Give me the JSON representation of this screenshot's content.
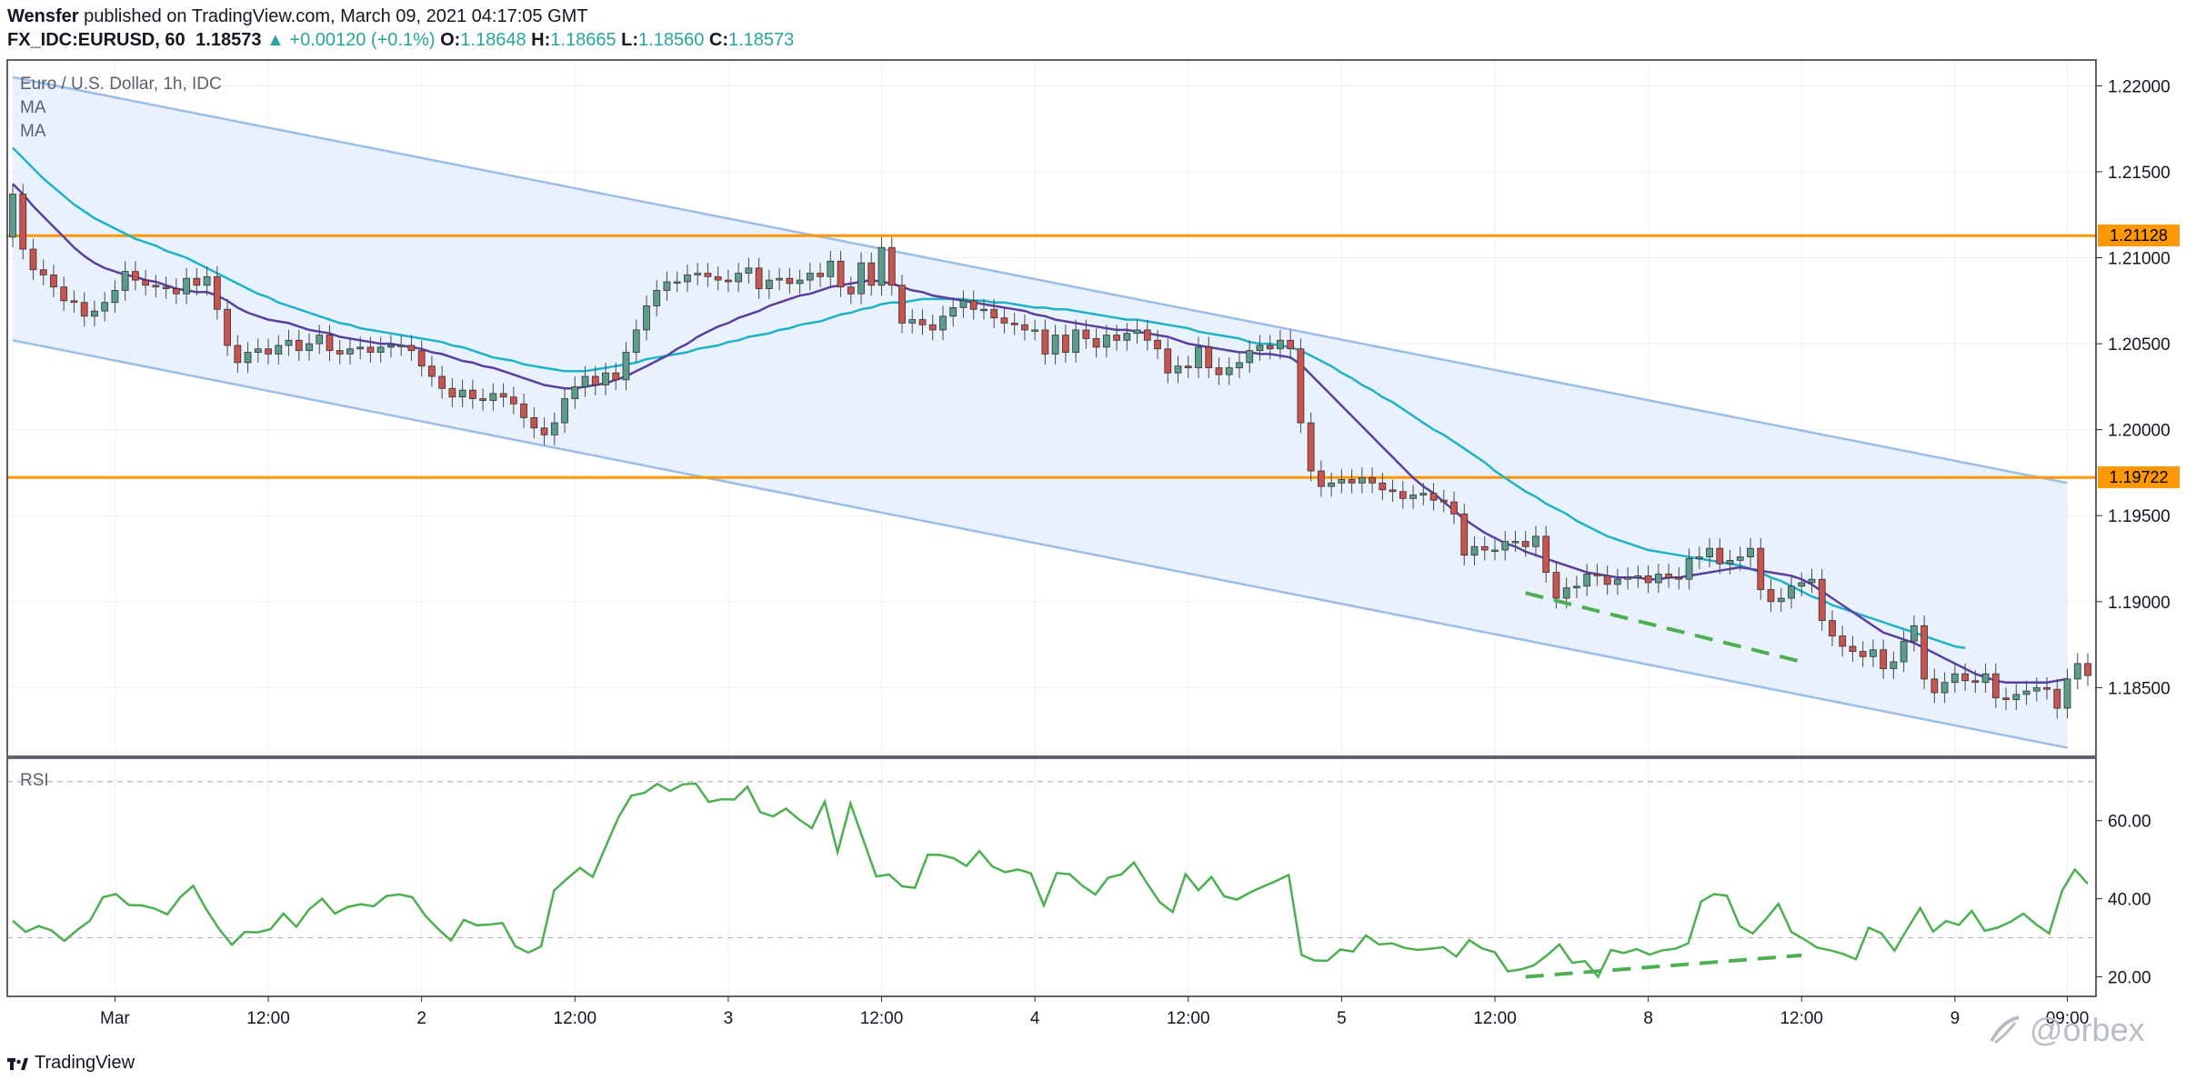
{
  "header": {
    "author": "Wensfer",
    "published_text": " published on TradingView.com, March 09, 2021 04:17:05 GMT",
    "symbol": "FX_IDC:EURUSD, 60",
    "last": "1.18573",
    "arrow": "▲",
    "change": "+0.00120 (+0.1%)",
    "o_label": "O:",
    "o": "1.18648",
    "h_label": "H:",
    "h": "1.18665",
    "l_label": "L:",
    "l": "1.18560",
    "c_label": "C:",
    "c": "1.18573"
  },
  "legend": {
    "instrument": "Euro / U.S. Dollar, 1h, IDC",
    "ma1": "MA",
    "ma2": "MA",
    "rsi": "RSI"
  },
  "footer": {
    "brand": "TradingView",
    "watermark": "@orbex"
  },
  "colors": {
    "up": "#5b9c8a",
    "down": "#c9534f",
    "ma_fast": "#5b3fa0",
    "ma_slow": "#1cb3c8",
    "rsi": "#4caf50",
    "level": "#ff9800",
    "channel": "#9bbde6",
    "channel_fill": "#e9f1fc"
  },
  "chart_data": [
    {
      "type": "candlestick",
      "title": "Euro / U.S. Dollar, 1h, IDC",
      "ylim": [
        1.181,
        1.2215
      ],
      "y_ticks": [
        1.185,
        1.19,
        1.195,
        1.2,
        1.205,
        1.21,
        1.215,
        1.22
      ],
      "y_tick_labels": [
        "1.18500",
        "1.19000",
        "1.19500",
        "1.20000",
        "1.20500",
        "1.21000",
        "1.21500",
        "1.22000"
      ],
      "x_tick_labels": [
        "Mar",
        "12:00",
        "2",
        "12:00",
        "3",
        "12:00",
        "4",
        "12:00",
        "5",
        "12:00",
        "8",
        "12:00",
        "9",
        "09:00"
      ],
      "x_tick_index": [
        10,
        25,
        40,
        55,
        70,
        85,
        100,
        115,
        130,
        145,
        160,
        175,
        190,
        201
      ],
      "levels": [
        {
          "label": "1.21128",
          "value": 1.21128
        },
        {
          "label": "1.19722",
          "value": 1.19722
        }
      ],
      "channel": {
        "upper": [
          [
            0,
            1.2205
          ],
          [
            201,
            1.1969
          ]
        ],
        "lower": [
          [
            0,
            1.2052
          ],
          [
            201,
            1.1815
          ]
        ]
      },
      "close": [
        1.2137,
        1.2105,
        1.2093,
        1.209,
        1.2083,
        1.2075,
        1.2074,
        1.2066,
        1.2069,
        1.2074,
        1.2081,
        1.2092,
        1.2087,
        1.2084,
        1.2083,
        1.2082,
        1.2079,
        1.2088,
        1.2084,
        1.2089,
        1.207,
        1.2049,
        1.2039,
        1.2045,
        1.2047,
        1.2044,
        1.2049,
        1.2052,
        1.2046,
        1.205,
        1.2055,
        1.2046,
        1.2044,
        1.2047,
        1.2048,
        1.2045,
        1.2048,
        1.2049,
        1.2049,
        1.2046,
        1.2037,
        1.2031,
        1.2024,
        1.2019,
        1.2023,
        1.2018,
        1.2017,
        1.2021,
        1.2019,
        1.2015,
        1.2007,
        1.2001,
        1.1997,
        1.2004,
        1.2018,
        1.2025,
        1.2031,
        1.2026,
        1.2033,
        1.2029,
        1.2045,
        1.2058,
        1.2072,
        1.2081,
        1.2086,
        1.2086,
        1.209,
        1.2091,
        1.2089,
        1.2087,
        1.2086,
        1.2091,
        1.2094,
        1.2082,
        1.2087,
        1.2088,
        1.2085,
        1.2087,
        1.2091,
        1.2089,
        1.2098,
        1.2083,
        1.2079,
        1.2097,
        1.2084,
        1.2106,
        1.2084,
        1.2062,
        1.2064,
        1.2061,
        1.2058,
        1.2066,
        1.2071,
        1.2075,
        1.207,
        1.207,
        1.2065,
        1.2062,
        1.2061,
        1.2058,
        1.2058,
        1.2044,
        1.2055,
        1.2045,
        1.2058,
        1.2053,
        1.2048,
        1.2055,
        1.2052,
        1.2056,
        1.2058,
        1.2052,
        1.2047,
        1.2033,
        1.2037,
        1.2036,
        1.2048,
        1.2036,
        1.2032,
        1.2036,
        1.2039,
        1.2046,
        1.2049,
        1.2047,
        1.2052,
        1.2047,
        1.2004,
        1.1976,
        1.1967,
        1.1969,
        1.1971,
        1.1969,
        1.1972,
        1.1969,
        1.1965,
        1.1964,
        1.196,
        1.1962,
        1.1963,
        1.1959,
        1.1958,
        1.1951,
        1.1927,
        1.1932,
        1.193,
        1.193,
        1.1935,
        1.1935,
        1.1932,
        1.1938,
        1.1917,
        1.1902,
        1.1908,
        1.1909,
        1.1916,
        1.1915,
        1.191,
        1.1913,
        1.1914,
        1.1915,
        1.1911,
        1.1916,
        1.1914,
        1.1913,
        1.1925,
        1.1926,
        1.1931,
        1.1922,
        1.1924,
        1.1926,
        1.1931,
        1.1907,
        1.19,
        1.1902,
        1.1909,
        1.1911,
        1.1913,
        1.1889,
        1.188,
        1.1874,
        1.1871,
        1.1868,
        1.1872,
        1.1861,
        1.1865,
        1.1877,
        1.1886,
        1.1855,
        1.1847,
        1.1853,
        1.1858,
        1.1854,
        1.1853,
        1.1858,
        1.1844,
        1.1843,
        1.1846,
        1.1848,
        1.185,
        1.1849,
        1.1838,
        1.1855,
        1.1864,
        1.1857
      ],
      "ma_fast": [
        1.2143,
        1.2137,
        1.213,
        1.2124,
        1.2118,
        1.2112,
        1.2106,
        1.2101,
        1.2097,
        1.2094,
        1.2092,
        1.209,
        1.2089,
        1.2087,
        1.2086,
        1.2084,
        1.2082,
        1.2081,
        1.208,
        1.208,
        1.2078,
        1.2075,
        1.2071,
        1.2068,
        1.2066,
        1.2064,
        1.2063,
        1.2062,
        1.206,
        1.2058,
        1.2057,
        1.2056,
        1.2054,
        1.2053,
        1.2052,
        1.2051,
        1.205,
        1.205,
        1.2049,
        1.2048,
        1.2047,
        1.2045,
        1.2044,
        1.2042,
        1.204,
        1.2039,
        1.2037,
        1.2036,
        1.2034,
        1.2032,
        1.203,
        1.2028,
        1.2026,
        1.2025,
        1.2024,
        1.2024,
        1.2025,
        1.2026,
        1.2027,
        1.2029,
        1.2031,
        1.2034,
        1.2037,
        1.204,
        1.2043,
        1.2047,
        1.205,
        1.2054,
        1.2057,
        1.206,
        1.2062,
        1.2065,
        1.2067,
        1.2069,
        1.2072,
        1.2074,
        1.2076,
        1.2078,
        1.2079,
        1.2081,
        1.2083,
        1.2084,
        1.2085,
        1.2086,
        1.2087,
        1.2086,
        1.2085,
        1.2083,
        1.2081,
        1.208,
        1.2078,
        1.2077,
        1.2076,
        1.2075,
        1.2074,
        1.2073,
        1.2072,
        1.2071,
        1.207,
        1.2069,
        1.2067,
        1.2066,
        1.2064,
        1.2063,
        1.2062,
        1.2061,
        1.206,
        1.2059,
        1.2058,
        1.2058,
        1.2057,
        1.2056,
        1.2055,
        1.2054,
        1.2052,
        1.205,
        1.2049,
        1.2048,
        1.2047,
        1.2046,
        1.2045,
        1.2045,
        1.2044,
        1.2044,
        1.2043,
        1.2042,
        1.2038,
        1.2032,
        1.2026,
        1.202,
        1.2014,
        1.2008,
        1.2002,
        1.1996,
        1.199,
        1.1984,
        1.1978,
        1.1972,
        1.1967,
        1.1963,
        1.1958,
        1.1953,
        1.1948,
        1.1944,
        1.194,
        1.1937,
        1.1934,
        1.1932,
        1.1929,
        1.1927,
        1.1925,
        1.1923,
        1.1921,
        1.1919,
        1.1917,
        1.1916,
        1.1915,
        1.1914,
        1.1914,
        1.1914,
        1.1913,
        1.1913,
        1.1914,
        1.1914,
        1.1915,
        1.1916,
        1.1917,
        1.1918,
        1.1919,
        1.192,
        1.1919,
        1.1918,
        1.1917,
        1.1916,
        1.1915,
        1.1913,
        1.191,
        1.1906,
        1.1902,
        1.1898,
        1.1894,
        1.189,
        1.1886,
        1.1882,
        1.188,
        1.1878,
        1.1876,
        1.1873,
        1.187,
        1.1867,
        1.1864,
        1.1861,
        1.1858,
        1.1856,
        1.1854,
        1.1853,
        1.1853,
        1.1853,
        1.1853,
        1.1853,
        1.1854,
        1.1855
      ],
      "ma_slow": [
        1.2164,
        1.2158,
        1.2152,
        1.2146,
        1.2141,
        1.2136,
        1.2131,
        1.2127,
        1.2123,
        1.212,
        1.2117,
        1.2114,
        1.2111,
        1.2109,
        1.2107,
        1.2104,
        1.2102,
        1.21,
        1.2097,
        1.2094,
        1.2091,
        1.2088,
        1.2085,
        1.2082,
        1.2079,
        1.2077,
        1.2074,
        1.2072,
        1.207,
        1.2068,
        1.2066,
        1.2064,
        1.2062,
        1.2061,
        1.2059,
        1.2058,
        1.2057,
        1.2056,
        1.2055,
        1.2054,
        1.2053,
        1.2052,
        1.2051,
        1.2049,
        1.2048,
        1.2046,
        1.2044,
        1.2042,
        1.2041,
        1.204,
        1.2038,
        1.2037,
        1.2036,
        1.2035,
        1.2034,
        1.2034,
        1.2034,
        1.2035,
        1.2036,
        1.2037,
        1.2038,
        1.2039,
        1.2041,
        1.2042,
        1.2043,
        1.2044,
        1.2045,
        1.2047,
        1.2048,
        1.2049,
        1.2051,
        1.2052,
        1.2054,
        1.2055,
        1.2056,
        1.2058,
        1.2059,
        1.2061,
        1.2062,
        1.2063,
        1.2065,
        1.2067,
        1.2068,
        1.207,
        1.2071,
        1.2073,
        1.2074,
        1.2074,
        1.2075,
        1.2076,
        1.2076,
        1.2076,
        1.2076,
        1.2076,
        1.2075,
        1.2075,
        1.2074,
        1.2074,
        1.2073,
        1.2072,
        1.2071,
        1.2071,
        1.207,
        1.207,
        1.2069,
        1.2068,
        1.2067,
        1.2066,
        1.2065,
        1.2064,
        1.2064,
        1.2063,
        1.2062,
        1.2061,
        1.206,
        1.2059,
        1.2057,
        1.2056,
        1.2055,
        1.2054,
        1.2053,
        1.2051,
        1.205,
        1.205,
        1.2049,
        1.2048,
        1.2046,
        1.2043,
        1.204,
        1.2037,
        1.2033,
        1.203,
        1.2026,
        1.2023,
        1.2019,
        1.2016,
        1.2012,
        1.2008,
        1.2004,
        1.2,
        1.1997,
        1.1993,
        1.1989,
        1.1985,
        1.1981,
        1.1976,
        1.1972,
        1.1968,
        1.1964,
        1.1961,
        1.1957,
        1.1954,
        1.1951,
        1.1947,
        1.1944,
        1.1941,
        1.1938,
        1.1936,
        1.1934,
        1.1932,
        1.193,
        1.1929,
        1.1928,
        1.1927,
        1.1926,
        1.1925,
        1.1924,
        1.1923,
        1.1922,
        1.1921,
        1.1919,
        1.1917,
        1.1914,
        1.1912,
        1.1909,
        1.1906,
        1.1903,
        1.1901,
        1.1898,
        1.1896,
        1.1894,
        1.1892,
        1.189,
        1.1888,
        1.1886,
        1.1884,
        1.1882,
        1.188,
        1.1878,
        1.1876,
        1.1874,
        1.1873
      ],
      "annotation": {
        "style": "dashed",
        "color": "#4caf50",
        "from": [
          148,
          1.1905
        ],
        "to": [
          175,
          1.1865
        ]
      }
    },
    {
      "type": "line",
      "title": "RSI",
      "ylim": [
        15,
        76
      ],
      "y_ticks": [
        20,
        40,
        60
      ],
      "y_tick_labels": [
        "20.00",
        "40.00",
        "60.00"
      ],
      "bands": [
        30,
        70
      ],
      "values": [
        34.4,
        31.5,
        33,
        31.9,
        29.2,
        32,
        34.4,
        40.4,
        41.2,
        38.4,
        38.3,
        37.5,
        36,
        40.4,
        43.3,
        37.4,
        32.3,
        28.2,
        31.5,
        31.4,
        32.2,
        36.2,
        32.8,
        37.3,
        40,
        36.2,
        37.9,
        38.6,
        38.1,
        40.7,
        41.1,
        40.4,
        35.7,
        32.3,
        29.3,
        34.6,
        33.2,
        33.4,
        33.8,
        27.8,
        26.2,
        27.8,
        42.1,
        45.1,
        47.9,
        45.6,
        53.3,
        60.9,
        66.4,
        67.1,
        69.4,
        67.6,
        69.3,
        69.5,
        64.8,
        65.5,
        65.4,
        68.7,
        62.2,
        61.1,
        63.1,
        60.3,
        58.1,
        64.9,
        51.9,
        64.4,
        55,
        45.7,
        46.2,
        43.2,
        42.8,
        51.3,
        51.2,
        50.4,
        48.4,
        52.2,
        48.3,
        46.8,
        47.5,
        46.5,
        38.3,
        46.6,
        46.3,
        43.3,
        41.1,
        45.4,
        46.2,
        49.3,
        44,
        39.1,
        36.6,
        46.3,
        42.2,
        45.6,
        40.6,
        39.8,
        41.6,
        43.1,
        44.5,
        46.1,
        25.6,
        24.2,
        24.1,
        27,
        26.5,
        30.6,
        28.3,
        28.6,
        27.4,
        26.9,
        27.2,
        27.6,
        25.2,
        29.4,
        27.3,
        26.3,
        21.4,
        21.9,
        22.9,
        25.4,
        28.3,
        23.6,
        24,
        20,
        26.9,
        26.1,
        27.1,
        25.7,
        26.8,
        27.2,
        28.6,
        39.3,
        41.2,
        40.8,
        33,
        31.1,
        34.7,
        38.7,
        31.5,
        29.6,
        27.5,
        26.8,
        25.9,
        24.5,
        32.6,
        31.1,
        26.7,
        32.3,
        37.6,
        31.6,
        34.3,
        33.3,
        36.9,
        31.8,
        32.6,
        34.1,
        36.2,
        33.4,
        31.1,
        42,
        47.5,
        43.8
      ]
    }
  ]
}
